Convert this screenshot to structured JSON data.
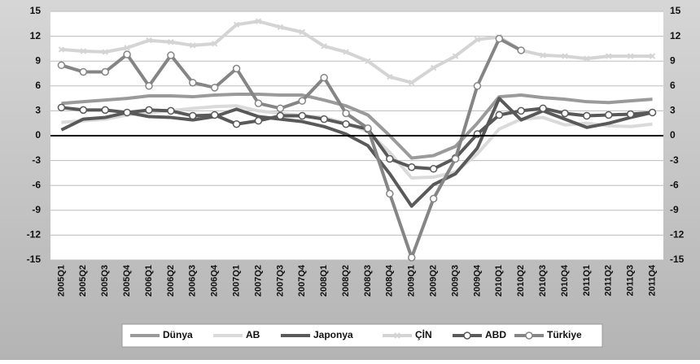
{
  "chart_data": {
    "type": "line",
    "categories": [
      "2005Q1",
      "2005Q2",
      "2005Q3",
      "2005Q4",
      "2006Q1",
      "2006Q2",
      "2006Q3",
      "2006Q4",
      "2007Q1",
      "2007Q2",
      "2007Q3",
      "2007Q4",
      "2008Q1",
      "2008Q2",
      "2008Q3",
      "2008Q4",
      "2009Q1",
      "2009Q2",
      "2009Q3",
      "2009Q4",
      "2010Q1",
      "2010Q2",
      "2010Q3",
      "2010Q4",
      "2011Q1",
      "2011Q2",
      "2011Q3",
      "2011Q4"
    ],
    "series": [
      {
        "name": "Dünya",
        "color": "#9a9a9a",
        "marker": "none",
        "values": [
          3.9,
          4.1,
          4.3,
          4.5,
          4.8,
          4.8,
          4.7,
          4.9,
          5.0,
          5.0,
          4.9,
          4.9,
          4.3,
          3.6,
          2.5,
          0.0,
          -2.7,
          -2.4,
          -1.3,
          1.5,
          4.7,
          4.9,
          4.6,
          4.4,
          4.1,
          4.0,
          4.2,
          4.4
        ]
      },
      {
        "name": "AB",
        "color": "#dadada",
        "marker": "none",
        "values": [
          1.6,
          1.8,
          2.0,
          2.5,
          2.8,
          3.0,
          3.3,
          3.5,
          3.6,
          3.0,
          2.7,
          2.4,
          2.2,
          1.5,
          0.5,
          -2.0,
          -5.1,
          -5.0,
          -4.4,
          -2.2,
          0.8,
          2.0,
          2.2,
          1.3,
          1.5,
          1.2,
          1.1,
          1.4
        ]
      },
      {
        "name": "Japonya",
        "color": "#595959",
        "marker": "none",
        "values": [
          0.7,
          2.0,
          2.2,
          2.8,
          2.3,
          2.2,
          1.9,
          2.3,
          3.2,
          2.3,
          2.0,
          1.7,
          1.1,
          0.2,
          -1.2,
          -4.6,
          -8.5,
          -5.9,
          -4.6,
          -1.5,
          4.5,
          1.9,
          3.0,
          2.0,
          1.0,
          1.5,
          2.2,
          2.8
        ]
      },
      {
        "name": "ÇİN",
        "color": "#d4d4d4",
        "marker": "cross",
        "values": [
          10.4,
          10.2,
          10.1,
          10.6,
          11.5,
          11.3,
          10.9,
          11.1,
          13.4,
          13.8,
          13.1,
          12.5,
          10.8,
          10.1,
          9.0,
          7.1,
          6.4,
          8.2,
          9.6,
          11.6,
          11.9,
          10.3,
          9.7,
          9.6,
          9.3,
          9.6,
          9.6,
          9.6
        ]
      },
      {
        "name": "ABD",
        "color": "#595959",
        "marker": "circle",
        "values": [
          3.4,
          3.1,
          3.1,
          2.8,
          3.1,
          3.0,
          2.4,
          2.5,
          1.4,
          1.8,
          2.4,
          2.4,
          2.0,
          1.4,
          0.8,
          -2.8,
          -3.8,
          -4.0,
          -2.7,
          0.2,
          2.5,
          3.0,
          3.3,
          2.7,
          2.4,
          2.5,
          2.6,
          2.8
        ]
      },
      {
        "name": "Türkiye",
        "color": "#858585",
        "marker": "circle",
        "values": [
          8.5,
          7.7,
          7.7,
          9.8,
          6.0,
          9.7,
          6.4,
          5.8,
          8.1,
          3.9,
          3.3,
          4.2,
          7.0,
          2.7,
          0.9,
          -7.0,
          -14.7,
          -7.6,
          -2.8,
          6.0,
          11.7,
          10.3,
          null,
          null,
          null,
          null,
          null,
          null
        ]
      }
    ],
    "ylim": [
      -15,
      15
    ],
    "yticks": [
      -15,
      -12,
      -9,
      -6,
      -3,
      0,
      3,
      6,
      9,
      12,
      15
    ],
    "y2lim": [
      -15,
      15
    ],
    "y2ticks": [
      -15,
      -12,
      -9,
      -6,
      -3,
      0,
      3,
      6,
      9,
      12,
      15
    ],
    "grid": true,
    "legend": "bottom"
  }
}
